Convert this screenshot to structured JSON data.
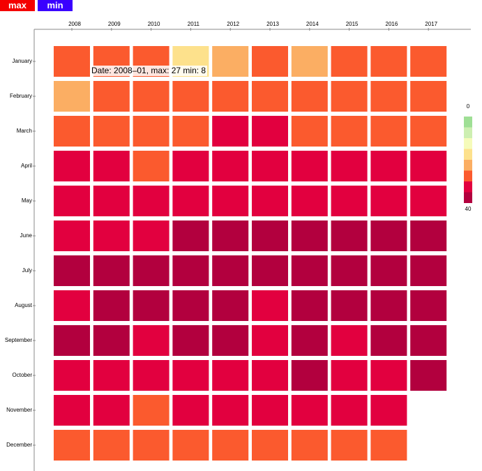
{
  "buttons": [
    "max",
    "min"
  ],
  "chart_data": {
    "type": "heatmap",
    "x": [
      "2008",
      "2009",
      "2010",
      "2011",
      "2012",
      "2013",
      "2014",
      "2015",
      "2016",
      "2017"
    ],
    "y": [
      "January",
      "February",
      "March",
      "April",
      "May",
      "June",
      "July",
      "August",
      "September",
      "October",
      "November",
      "December"
    ],
    "values": [
      [
        27,
        27,
        27,
        17,
        22,
        27,
        22,
        27,
        27,
        27
      ],
      [
        22,
        27,
        27,
        27,
        27,
        27,
        27,
        27,
        27,
        27
      ],
      [
        27,
        27,
        27,
        27,
        32,
        32,
        27,
        27,
        27,
        27
      ],
      [
        32,
        32,
        27,
        32,
        32,
        32,
        32,
        32,
        32,
        32
      ],
      [
        32,
        32,
        32,
        32,
        32,
        32,
        32,
        32,
        32,
        32
      ],
      [
        32,
        32,
        32,
        37,
        37,
        37,
        37,
        37,
        37,
        37
      ],
      [
        37,
        37,
        37,
        37,
        37,
        37,
        37,
        37,
        37,
        37
      ],
      [
        32,
        37,
        37,
        37,
        37,
        32,
        37,
        37,
        37,
        37
      ],
      [
        37,
        37,
        32,
        37,
        37,
        32,
        37,
        32,
        37,
        37
      ],
      [
        32,
        32,
        32,
        32,
        32,
        32,
        37,
        32,
        32,
        37
      ],
      [
        32,
        32,
        27,
        32,
        32,
        32,
        32,
        32,
        32,
        null
      ],
      [
        27,
        27,
        27,
        27,
        27,
        27,
        27,
        27,
        27,
        null
      ]
    ],
    "colorbar_lim": [
      0,
      40
    ],
    "colors": [
      "#9fdf95",
      "#cdefb1",
      "#f5fbba",
      "#fde18c",
      "#fbae63",
      "#fb5a2e",
      "#e2003f",
      "#b2003e"
    ],
    "tooltip": "Date: 2008–01, max: 27 min: 8"
  }
}
